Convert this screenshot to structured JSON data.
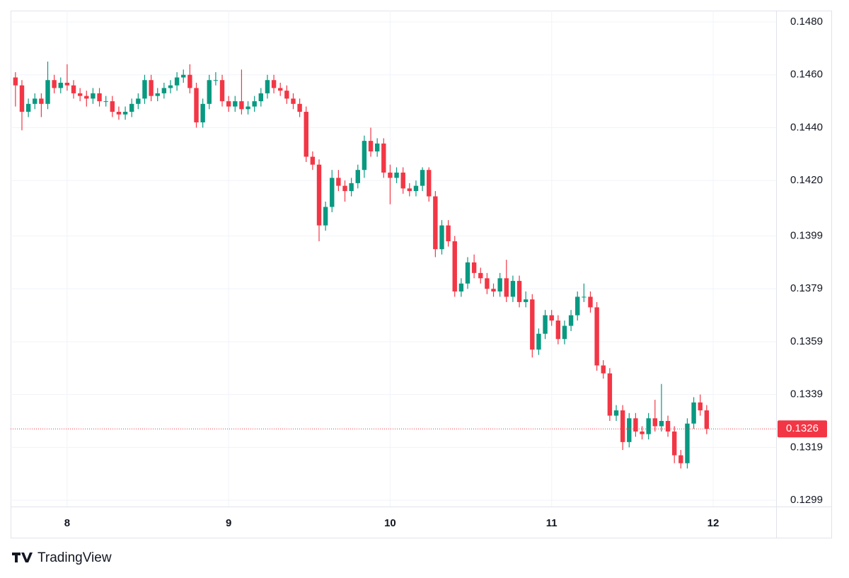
{
  "chart_data": {
    "type": "candlestick",
    "branding": "TradingView",
    "up_color": "#089981",
    "down_color": "#f23645",
    "grid": true,
    "xlim": [
      7.65,
      12.39
    ],
    "xticks": [
      8,
      9,
      10,
      11,
      12
    ],
    "ylim": [
      0.12966,
      0.14843
    ],
    "yticks": [
      {
        "value": 0.148,
        "label": "0.1480"
      },
      {
        "value": 0.146,
        "label": "0.1460"
      },
      {
        "value": 0.144,
        "label": "0.1440"
      },
      {
        "value": 0.142,
        "label": "0.1420"
      },
      {
        "value": 0.1399,
        "label": "0.1399"
      },
      {
        "value": 0.1379,
        "label": "0.1379"
      },
      {
        "value": 0.1359,
        "label": "0.1359"
      },
      {
        "value": 0.1339,
        "label": "0.1339"
      },
      {
        "value": 0.1319,
        "label": "0.1319"
      },
      {
        "value": 0.1299,
        "label": "0.1299"
      }
    ],
    "last_price": 0.1326,
    "x": [
      7.68,
      7.72,
      7.76,
      7.8,
      7.84,
      7.88,
      7.92,
      7.96,
      8.0,
      8.04,
      8.08,
      8.12,
      8.16,
      8.2,
      8.24,
      8.28,
      8.32,
      8.36,
      8.4,
      8.44,
      8.48,
      8.52,
      8.56,
      8.6,
      8.64,
      8.68,
      8.72,
      8.76,
      8.8,
      8.84,
      8.88,
      8.92,
      8.96,
      9.0,
      9.04,
      9.08,
      9.12,
      9.16,
      9.2,
      9.24,
      9.28,
      9.32,
      9.36,
      9.4,
      9.44,
      9.48,
      9.52,
      9.56,
      9.6,
      9.64,
      9.68,
      9.72,
      9.76,
      9.8,
      9.84,
      9.88,
      9.92,
      9.96,
      10.0,
      10.04,
      10.08,
      10.12,
      10.16,
      10.2,
      10.24,
      10.28,
      10.32,
      10.36,
      10.4,
      10.44,
      10.48,
      10.52,
      10.56,
      10.6,
      10.64,
      10.68,
      10.72,
      10.76,
      10.8,
      10.84,
      10.88,
      10.92,
      10.96,
      11.0,
      11.04,
      11.08,
      11.12,
      11.16,
      11.2,
      11.24,
      11.28,
      11.32,
      11.36,
      11.4,
      11.44,
      11.48,
      11.52,
      11.56,
      11.6,
      11.64,
      11.68,
      11.72,
      11.76,
      11.8,
      11.84,
      11.88,
      11.92,
      11.96
    ],
    "open": [
      0.1459,
      0.1456,
      0.1446,
      0.1449,
      0.1451,
      0.1449,
      0.1458,
      0.1455,
      0.1457,
      0.1456,
      0.1453,
      0.1452,
      0.1451,
      0.1453,
      0.145,
      0.145,
      0.1446,
      0.1445,
      0.1446,
      0.1449,
      0.1451,
      0.1458,
      0.1452,
      0.1453,
      0.1455,
      0.1456,
      0.1459,
      0.146,
      0.1455,
      0.1442,
      0.1449,
      0.1458,
      0.1458,
      0.145,
      0.1448,
      0.145,
      0.1447,
      0.1448,
      0.145,
      0.1453,
      0.1458,
      0.1455,
      0.1454,
      0.1451,
      0.1449,
      0.1446,
      0.1429,
      0.1426,
      0.1403,
      0.141,
      0.1421,
      0.1418,
      0.1416,
      0.1419,
      0.1424,
      0.1435,
      0.1431,
      0.1434,
      0.1423,
      0.1421,
      0.1423,
      0.1417,
      0.1416,
      0.1418,
      0.1424,
      0.1414,
      0.1394,
      0.1403,
      0.1397,
      0.1378,
      0.1381,
      0.1389,
      0.1385,
      0.1383,
      0.1379,
      0.1378,
      0.1383,
      0.1376,
      0.1382,
      0.1374,
      0.1375,
      0.1356,
      0.1362,
      0.1369,
      0.1367,
      0.136,
      0.1365,
      0.1369,
      0.1376,
      0.1376,
      0.1372,
      0.135,
      0.1347,
      0.1331,
      0.1333,
      0.1321,
      0.133,
      0.1325,
      0.1324,
      0.133,
      0.1327,
      0.1329,
      0.1325,
      0.1316,
      0.1313,
      0.1328,
      0.1336,
      0.1333
    ],
    "high": [
      0.1461,
      0.1458,
      0.1451,
      0.1453,
      0.1453,
      0.1465,
      0.146,
      0.1459,
      0.1464,
      0.1458,
      0.1455,
      0.1454,
      0.1455,
      0.1455,
      0.1452,
      0.1452,
      0.1448,
      0.1448,
      0.1451,
      0.1453,
      0.146,
      0.146,
      0.1455,
      0.1457,
      0.1458,
      0.1461,
      0.1462,
      0.1464,
      0.1457,
      0.1451,
      0.146,
      0.1461,
      0.146,
      0.1452,
      0.1452,
      0.1462,
      0.145,
      0.1452,
      0.1455,
      0.146,
      0.146,
      0.1457,
      0.1456,
      0.1453,
      0.1451,
      0.1448,
      0.1431,
      0.1428,
      0.1412,
      0.1424,
      0.1424,
      0.142,
      0.1421,
      0.1426,
      0.1437,
      0.144,
      0.1436,
      0.1436,
      0.1426,
      0.1425,
      0.1425,
      0.1419,
      0.142,
      0.1425,
      0.1425,
      0.1416,
      0.1405,
      0.1405,
      0.1399,
      0.1383,
      0.1391,
      0.1392,
      0.1387,
      0.1385,
      0.1381,
      0.1385,
      0.139,
      0.1384,
      0.1384,
      0.1378,
      0.1377,
      0.1364,
      0.1371,
      0.1371,
      0.1369,
      0.1367,
      0.1371,
      0.1378,
      0.1381,
      0.1378,
      0.1374,
      0.1352,
      0.1349,
      0.1335,
      0.1335,
      0.1332,
      0.1332,
      0.1327,
      0.1332,
      0.1337,
      0.1343,
      0.1331,
      0.1327,
      0.1318,
      0.133,
      0.1338,
      0.1339,
      0.1335
    ],
    "low": [
      0.1448,
      0.1439,
      0.1444,
      0.1447,
      0.1444,
      0.1447,
      0.1453,
      0.1453,
      0.1454,
      0.1451,
      0.145,
      0.1448,
      0.1449,
      0.1448,
      0.1448,
      0.1444,
      0.1443,
      0.1443,
      0.1444,
      0.1447,
      0.1449,
      0.145,
      0.145,
      0.1451,
      0.1453,
      0.1454,
      0.1457,
      0.1453,
      0.144,
      0.144,
      0.1447,
      0.1456,
      0.1448,
      0.1446,
      0.1446,
      0.1445,
      0.1445,
      0.1446,
      0.1448,
      0.1451,
      0.1453,
      0.1452,
      0.1449,
      0.1447,
      0.1444,
      0.1427,
      0.1424,
      0.1397,
      0.1401,
      0.1408,
      0.1416,
      0.1412,
      0.1414,
      0.1417,
      0.1421,
      0.1429,
      0.1429,
      0.1421,
      0.1411,
      0.1419,
      0.1415,
      0.1414,
      0.1414,
      0.1416,
      0.1412,
      0.1391,
      0.1392,
      0.1395,
      0.1376,
      0.1376,
      0.1379,
      0.1383,
      0.1381,
      0.1377,
      0.1376,
      0.1376,
      0.1374,
      0.1374,
      0.1372,
      0.1372,
      0.1353,
      0.1354,
      0.136,
      0.1365,
      0.1358,
      0.1358,
      0.1363,
      0.1367,
      0.1374,
      0.137,
      0.1348,
      0.1345,
      0.1329,
      0.1329,
      0.1318,
      0.1319,
      0.1323,
      0.1322,
      0.1322,
      0.1325,
      0.1325,
      0.1323,
      0.1313,
      0.1311,
      0.1311,
      0.1326,
      0.1331,
      0.1324
    ],
    "close": [
      0.1456,
      0.1446,
      0.1449,
      0.1451,
      0.1449,
      0.1458,
      0.1455,
      0.1457,
      0.1456,
      0.1453,
      0.1452,
      0.1451,
      0.1453,
      0.145,
      0.145,
      0.1446,
      0.1445,
      0.1446,
      0.1449,
      0.1451,
      0.1458,
      0.1452,
      0.1453,
      0.1455,
      0.1456,
      0.1459,
      0.146,
      0.1455,
      0.1442,
      0.1449,
      0.1458,
      0.1458,
      0.145,
      0.1448,
      0.145,
      0.1447,
      0.1448,
      0.145,
      0.1453,
      0.1458,
      0.1455,
      0.1454,
      0.1451,
      0.1449,
      0.1446,
      0.1429,
      0.1426,
      0.1403,
      0.141,
      0.1421,
      0.1418,
      0.1416,
      0.1419,
      0.1424,
      0.1435,
      0.1431,
      0.1434,
      0.1423,
      0.1421,
      0.1423,
      0.1417,
      0.1416,
      0.1418,
      0.1424,
      0.1414,
      0.1394,
      0.1403,
      0.1397,
      0.1378,
      0.1381,
      0.1389,
      0.1385,
      0.1383,
      0.1379,
      0.1378,
      0.1383,
      0.1376,
      0.1382,
      0.1374,
      0.1375,
      0.1356,
      0.1362,
      0.1369,
      0.1367,
      0.136,
      0.1365,
      0.1369,
      0.1376,
      0.1376,
      0.1372,
      0.135,
      0.1347,
      0.1331,
      0.1333,
      0.1321,
      0.133,
      0.1325,
      0.1324,
      0.133,
      0.1327,
      0.1329,
      0.1325,
      0.1316,
      0.1313,
      0.1328,
      0.1336,
      0.1333,
      0.1326
    ]
  }
}
